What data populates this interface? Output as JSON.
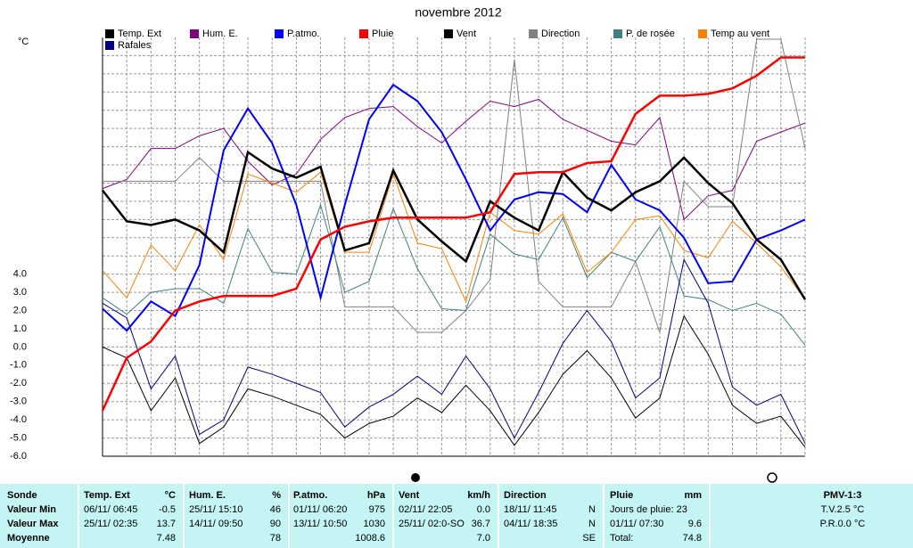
{
  "chart_data": {
    "type": "line",
    "title": "novembre 2012",
    "y_unit": "°C",
    "categories": [
      null,
      null,
      null,
      null,
      null,
      null,
      null,
      null,
      null,
      null,
      null,
      null,
      null,
      null,
      null,
      null,
      null,
      null,
      null,
      null,
      null,
      null,
      null,
      null,
      null,
      null,
      null,
      null,
      null,
      null
    ],
    "ylim": [
      -6,
      17
    ],
    "yticks": [
      {
        "value": 4,
        "label": "4.0"
      },
      {
        "value": 3,
        "label": "3.0"
      },
      {
        "value": 2,
        "label": "2.0"
      },
      {
        "value": 1,
        "label": "1.0"
      },
      {
        "value": 0,
        "label": "0.0"
      },
      {
        "value": -1,
        "label": "-1.0"
      },
      {
        "value": -2,
        "label": "-2.0"
      },
      {
        "value": -3,
        "label": "-3.0"
      },
      {
        "value": -4,
        "label": "-4.0"
      },
      {
        "value": -5,
        "label": "-5.0"
      },
      {
        "value": -6,
        "label": "-6.0"
      }
    ],
    "ygrid": [
      5,
      6,
      7,
      8,
      9,
      10,
      11,
      12,
      13,
      14,
      15,
      16
    ],
    "grid": true,
    "series": [
      {
        "name": "Temp. Ext",
        "color": "#000000",
        "line_width": 2.5,
        "values": [
          8.6,
          6.9,
          6.7,
          7.0,
          6.4,
          5.2,
          10.7,
          9.8,
          9.3,
          9.9,
          5.3,
          5.7,
          9.7,
          7.0,
          5.8,
          4.7,
          8.0,
          7.1,
          6.4,
          9.6,
          8.2,
          7.5,
          8.5,
          9.1,
          10.4,
          9.0,
          7.9,
          5.9,
          4.8,
          2.6
        ]
      },
      {
        "name": "Hum. E.",
        "color": "#800080",
        "line_width": 1,
        "values": [
          8.7,
          9.2,
          10.9,
          10.9,
          11.6,
          12.0,
          10.2,
          8.9,
          9.5,
          11.4,
          12.6,
          13.1,
          13.2,
          12.1,
          11.2,
          12.4,
          13.5,
          13.2,
          13.6,
          12.5,
          11.9,
          11.3,
          11.1,
          12.6,
          7.0,
          8.3,
          8.6,
          11.3,
          11.8,
          12.3
        ]
      },
      {
        "name": "P.atmo.",
        "color": "#0000ff",
        "line_width": 2,
        "values": [
          2.1,
          0.9,
          2.5,
          1.7,
          4.5,
          10.8,
          13.1,
          11.2,
          7.8,
          2.7,
          7.8,
          12.5,
          14.4,
          13.5,
          11.8,
          9.2,
          6.4,
          8.1,
          8.5,
          8.4,
          7.4,
          10.0,
          8.1,
          7.5,
          6.0,
          3.5,
          3.6,
          5.9,
          6.4,
          7.0
        ]
      },
      {
        "name": "Pluie",
        "color": "#ff0000",
        "line_width": 2.5,
        "values": [
          -3.5,
          -0.6,
          0.3,
          2.0,
          2.5,
          2.8,
          2.8,
          2.8,
          3.2,
          5.9,
          6.6,
          6.9,
          7.1,
          7.1,
          7.1,
          7.1,
          7.4,
          9.5,
          9.6,
          9.6,
          10.1,
          10.2,
          12.8,
          13.8,
          13.8,
          13.9,
          14.2,
          14.9,
          15.9,
          15.9
        ]
      },
      {
        "name": "Vent",
        "color": "#000000",
        "line_width": 1,
        "values": [
          0.0,
          -0.6,
          -3.5,
          -1.7,
          -5.3,
          -4.4,
          -2.3,
          -2.7,
          -3.2,
          -3.7,
          -5.0,
          -4.2,
          -3.8,
          -2.8,
          -3.6,
          -2.1,
          -3.5,
          -5.4,
          -3.6,
          -1.5,
          -0.2,
          -1.7,
          -3.9,
          -2.8,
          1.7,
          -0.4,
          -3.2,
          -4.2,
          -3.8,
          -5.5
        ]
      },
      {
        "name": "Direction",
        "color": "#808080",
        "line_width": 1,
        "values": [
          9.1,
          9.1,
          9.1,
          9.1,
          10.4,
          9.1,
          9.1,
          9.1,
          9.1,
          9.1,
          2.2,
          2.2,
          2.2,
          0.8,
          0.8,
          2.0,
          3.7,
          15.8,
          3.6,
          2.2,
          2.2,
          2.2,
          4.7,
          0.8,
          9.1,
          7.7,
          7.7,
          16.9,
          16.9,
          10.9
        ]
      },
      {
        "name": "P. de rosée",
        "color": "#408080",
        "line_width": 1,
        "values": [
          2.7,
          1.8,
          3.0,
          3.2,
          3.2,
          2.4,
          6.5,
          4.1,
          4.0,
          7.8,
          3.0,
          3.6,
          7.6,
          4.3,
          2.1,
          2.0,
          6.2,
          5.1,
          4.8,
          7.1,
          3.8,
          5.2,
          4.7,
          6.6,
          2.8,
          2.6,
          2.0,
          2.4,
          1.8,
          0.1
        ]
      },
      {
        "name": "Temp au vent",
        "color": "#ff8000",
        "line_width": 1,
        "values": [
          4.2,
          2.7,
          5.6,
          4.2,
          6.7,
          4.8,
          9.5,
          9.0,
          8.5,
          9.6,
          5.2,
          5.2,
          9.5,
          5.7,
          5.4,
          2.5,
          7.4,
          6.4,
          6.2,
          7.3,
          4.1,
          5.2,
          7.0,
          7.2,
          5.3,
          4.9,
          6.9,
          5.7,
          4.4,
          2.6
        ]
      },
      {
        "name": "Rafales",
        "color": "#000080",
        "line_width": 1,
        "values": [
          2.4,
          1.6,
          -2.3,
          -0.5,
          -4.8,
          -4.0,
          -1.1,
          -1.5,
          -2.0,
          -2.5,
          -4.4,
          -3.3,
          -2.6,
          -1.6,
          -2.6,
          -0.5,
          -2.3,
          -5.0,
          -2.5,
          0.2,
          2.0,
          0.3,
          -2.8,
          -1.7,
          4.8,
          2.4,
          -2.2,
          -3.2,
          -2.6,
          -5.3
        ]
      }
    ]
  },
  "table": {
    "row_labels": [
      "Sonde",
      "Valeur Min",
      "Valeur Max",
      "Moyenne"
    ],
    "columns": [
      {
        "name": "Temp. Ext",
        "unit": "°C",
        "min": [
          "06/11/ 06:45",
          "-0.5"
        ],
        "max": [
          "25/11/ 02:35",
          "13.7"
        ],
        "mean": [
          "7.48"
        ]
      },
      {
        "name": "Hum. E.",
        "unit": "%",
        "min": [
          "25/11/ 15:10",
          "46"
        ],
        "max": [
          "14/11/ 09:50",
          "90"
        ],
        "mean": [
          "78"
        ]
      },
      {
        "name": "P.atmo.",
        "unit": "hPa",
        "min": [
          "01/11/ 06:20",
          "975"
        ],
        "max": [
          "13/11/ 10:50",
          "1030"
        ],
        "mean": [
          "1008.6"
        ]
      },
      {
        "name": "Vent",
        "unit": "km/h",
        "min": [
          "02/11/ 22:05",
          "0.0"
        ],
        "max": [
          "25/11/ 02:0-SO",
          "36.7"
        ],
        "mean": [
          "7.0"
        ]
      },
      {
        "name": "Direction",
        "unit": null,
        "min": [
          "18/11/ 11:45",
          "N"
        ],
        "max": [
          "04/11/ 18:35",
          "N"
        ],
        "mean": [
          "SE"
        ]
      },
      {
        "name": "Pluie",
        "unit": "mm",
        "min": [
          "Jours de pluie: 23"
        ],
        "max": [
          "01/11/ 07:30",
          "9.6"
        ],
        "mean": [
          "Total:",
          "74.8"
        ]
      }
    ],
    "pmv": {
      "title": "PMV-1:3",
      "lines": [
        "T.V.2.5 °C",
        "P.R.0.0 °C"
      ]
    }
  }
}
